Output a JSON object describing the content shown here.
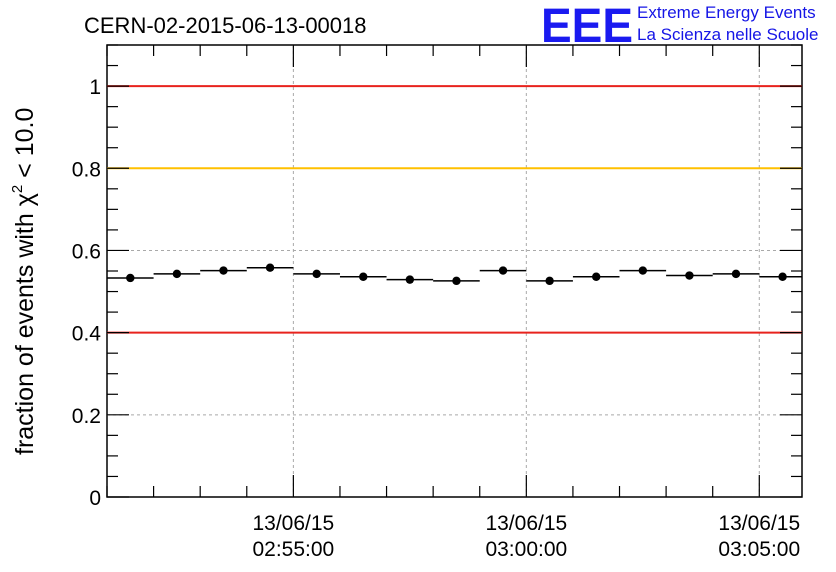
{
  "chart_data": {
    "type": "scatter",
    "title": "CERN-02-2015-06-13-00018",
    "ylabel_prefix": "fraction of events with ",
    "ylabel_symbol": "χ",
    "ylabel_power": "2",
    "ylabel_suffix": " < 10.0",
    "xlabel": "",
    "xlim": [
      "02:51:00",
      "03:05:55"
    ],
    "ylim": [
      0,
      1.1
    ],
    "y_ticks": [
      0,
      0.2,
      0.4,
      0.6,
      0.8,
      1
    ],
    "y_tick_labels": [
      "0",
      "0.2",
      "0.4",
      "0.6",
      "0.8",
      "1"
    ],
    "x_ticks": [
      {
        "time": "02:55:00",
        "date": "13/06/15",
        "clock": "02:55:00"
      },
      {
        "time": "03:00:00",
        "date": "13/06/15",
        "clock": "03:00:00"
      },
      {
        "time": "03:05:00",
        "date": "13/06/15",
        "clock": "03:05:00"
      }
    ],
    "bin_width_min": 1,
    "grid": true,
    "reference_lines": [
      {
        "y": 1.0,
        "color": "#e8231d"
      },
      {
        "y": 0.8,
        "color": "#ffc000"
      },
      {
        "y": 0.4,
        "color": "#e8231d"
      }
    ],
    "points": [
      {
        "x": "02:51:30",
        "y": 0.533
      },
      {
        "x": "02:52:30",
        "y": 0.543
      },
      {
        "x": "02:53:30",
        "y": 0.551
      },
      {
        "x": "02:54:30",
        "y": 0.558
      },
      {
        "x": "02:55:30",
        "y": 0.543
      },
      {
        "x": "02:56:30",
        "y": 0.536
      },
      {
        "x": "02:57:30",
        "y": 0.529
      },
      {
        "x": "02:58:30",
        "y": 0.526
      },
      {
        "x": "02:59:30",
        "y": 0.551
      },
      {
        "x": "03:00:30",
        "y": 0.526
      },
      {
        "x": "03:01:30",
        "y": 0.536
      },
      {
        "x": "03:02:30",
        "y": 0.551
      },
      {
        "x": "03:03:30",
        "y": 0.539
      },
      {
        "x": "03:04:30",
        "y": 0.543
      },
      {
        "x": "03:05:30",
        "y": 0.536
      }
    ],
    "point_color": "#000000"
  },
  "logo": {
    "mark": "EEE",
    "line1": "Extreme Energy Events",
    "line2": "La Scienza nelle Scuole",
    "color": "#1515e6"
  }
}
